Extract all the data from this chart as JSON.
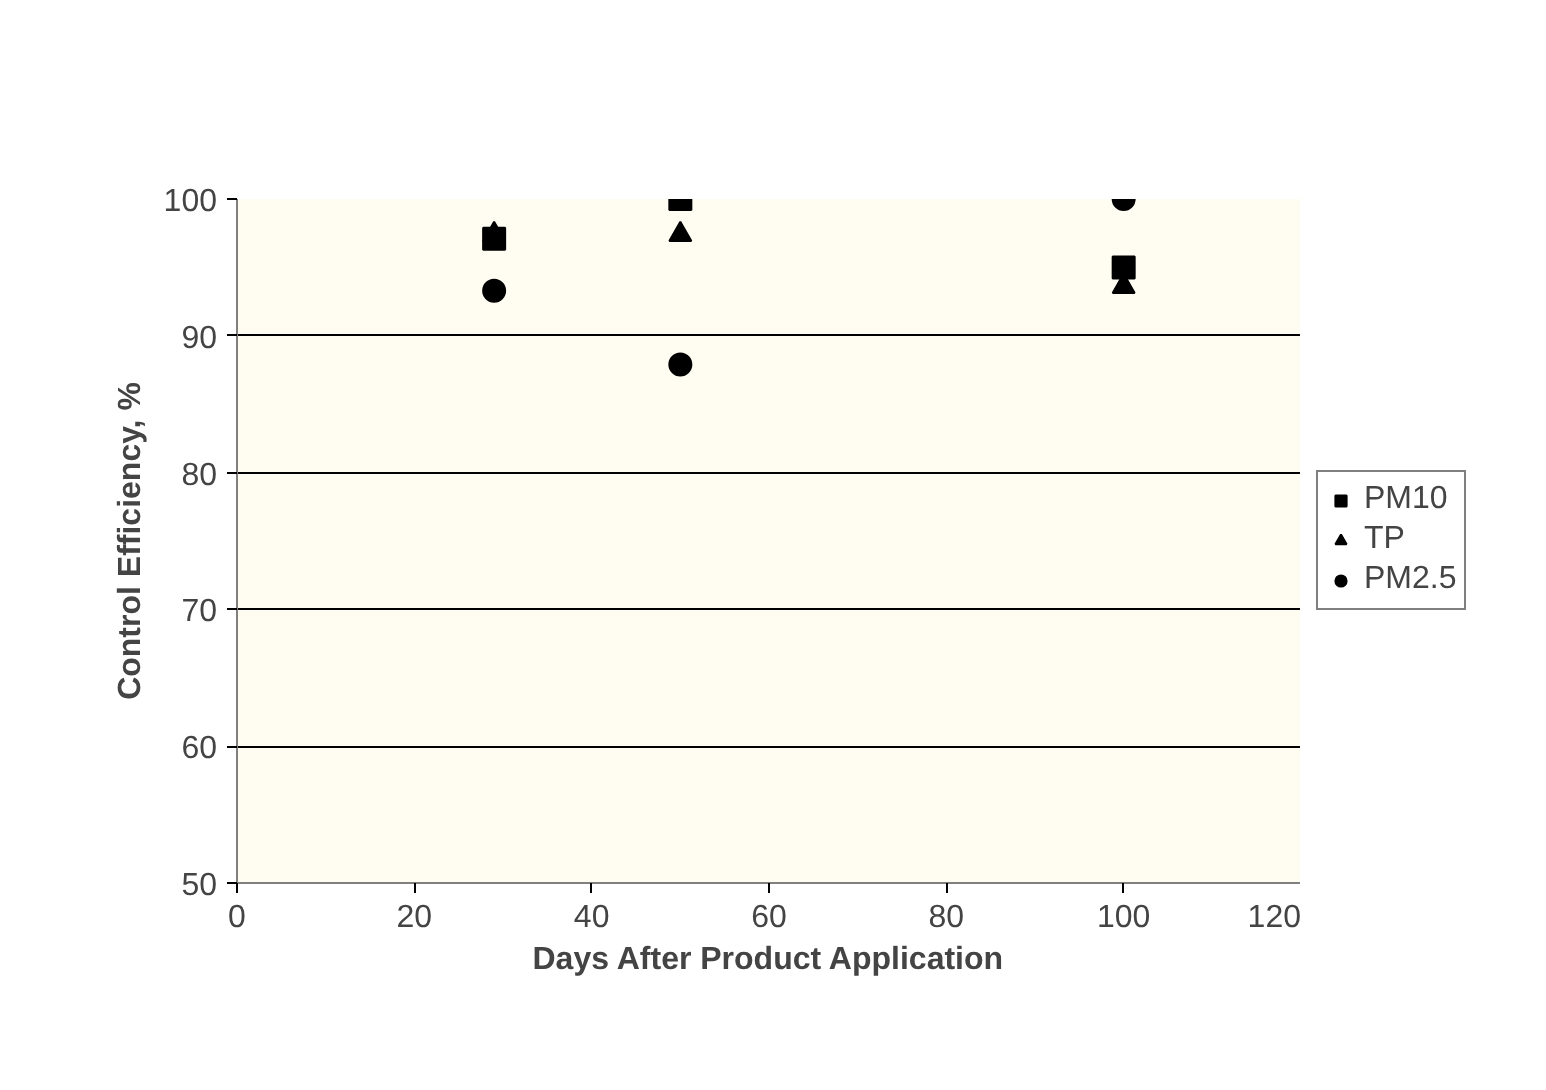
{
  "chart_data": {
    "type": "scatter",
    "xlabel": "Days After Product Application",
    "ylabel": "Control Efficiency, %",
    "x": [
      29,
      50,
      100
    ],
    "series": [
      {
        "name": "PM10",
        "color": "#000000",
        "marker": "square",
        "values": [
          97.1,
          100,
          95.0
        ]
      },
      {
        "name": "TP",
        "color": "#000000",
        "marker": "triangle",
        "values": [
          97.4,
          97.4,
          93.6
        ]
      },
      {
        "name": "PM2.5",
        "color": "#000000",
        "marker": "circle",
        "values": [
          93.3,
          87.9,
          100
        ]
      }
    ],
    "xlim": [
      0,
      120
    ],
    "xticks": [
      0,
      20,
      40,
      60,
      80,
      100,
      120
    ],
    "ylim": [
      50,
      100
    ],
    "yticks": [
      50,
      60,
      70,
      80,
      90,
      100
    ],
    "grid": "y",
    "legend": "right"
  }
}
